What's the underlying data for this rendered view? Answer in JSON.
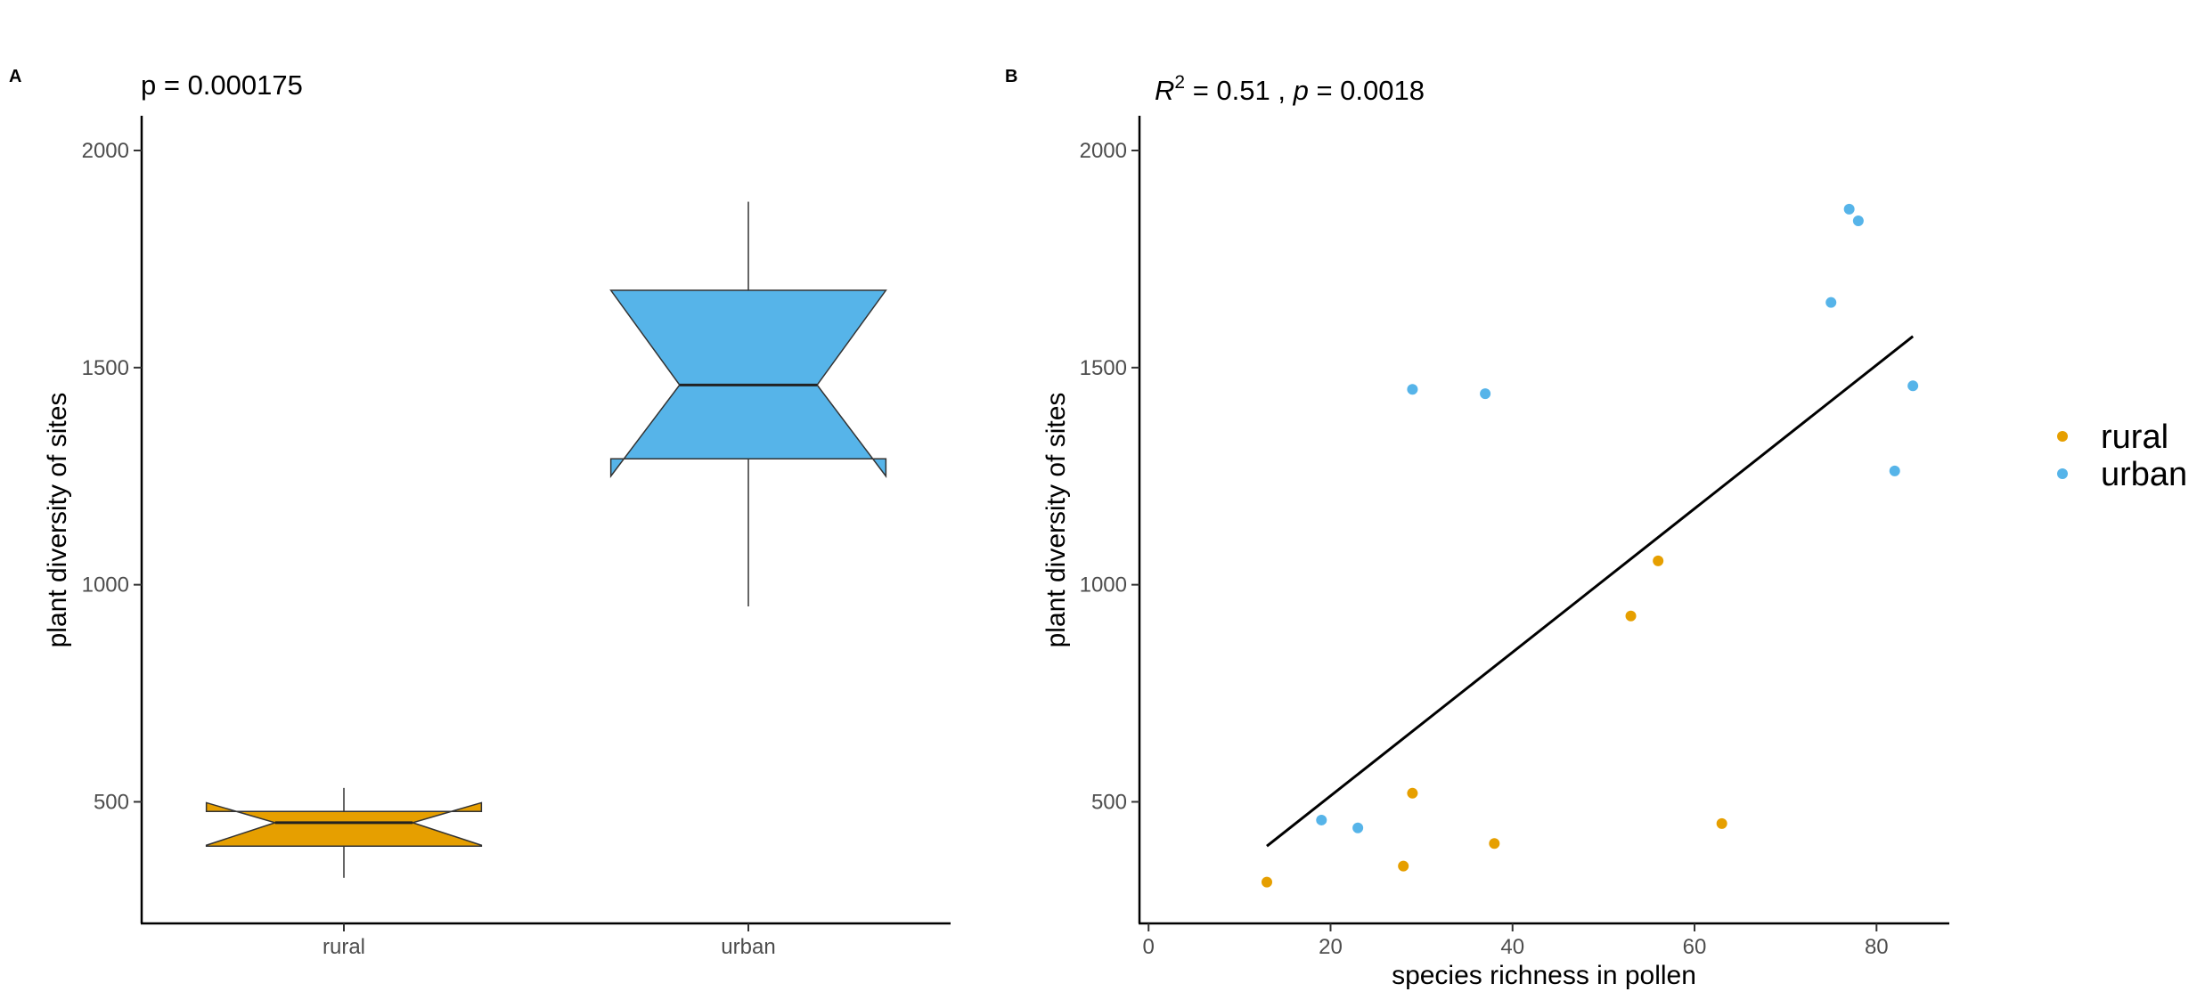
{
  "colors": {
    "rural": "#E69F00",
    "urban": "#56B4E9",
    "axis": "#000000",
    "tick_text": "#4d4d4d"
  },
  "panels": {
    "a": {
      "tag": "A",
      "subtitle": "p = 0.000175"
    },
    "b": {
      "tag": "B",
      "subtitle_r": "R",
      "subtitle_sup": "2",
      "subtitle_rest": " = 0.51 , ",
      "subtitle_p": "p",
      "subtitle_tail": " = 0.0018"
    }
  },
  "legend": {
    "items": [
      {
        "label": "rural",
        "color": "#E69F00"
      },
      {
        "label": "urban",
        "color": "#56B4E9"
      }
    ]
  },
  "chart_data": [
    {
      "type": "boxplot",
      "notched": true,
      "ylabel": "plant diversity of sites",
      "xlabel": "",
      "ylim": [
        220,
        2080
      ],
      "yticks": [
        500,
        1000,
        1500,
        2000
      ],
      "categories": [
        "rural",
        "urban"
      ],
      "boxes": [
        {
          "category": "rural",
          "color": "#E69F00",
          "whisker_low": 325,
          "q1": 398,
          "notch_low": 400,
          "median": 452,
          "notch_high": 498,
          "q3": 478,
          "whisker_high": 532
        },
        {
          "category": "urban",
          "color": "#56B4E9",
          "whisker_low": 950,
          "q1": 1290,
          "notch_low": 1250,
          "median": 1460,
          "notch_high": 1678,
          "q3": 1678,
          "whisker_high": 1882
        }
      ]
    },
    {
      "type": "scatter",
      "xlabel": "species richness in pollen",
      "ylabel": "plant diversity of sites",
      "xlim": [
        -1,
        88
      ],
      "ylim": [
        220,
        2080
      ],
      "xticks": [
        0,
        20,
        40,
        60,
        80
      ],
      "yticks": [
        500,
        1000,
        1500,
        2000
      ],
      "series": [
        {
          "name": "rural",
          "color": "#E69F00",
          "points": [
            [
              13,
              315
            ],
            [
              28,
              352
            ],
            [
              29,
              520
            ],
            [
              38,
              404
            ],
            [
              53,
              928
            ],
            [
              56,
              1055
            ],
            [
              63,
              450
            ]
          ]
        },
        {
          "name": "urban",
          "color": "#56B4E9",
          "points": [
            [
              19,
              458
            ],
            [
              23,
              440
            ],
            [
              29,
              1450
            ],
            [
              37,
              1440
            ],
            [
              75,
              1650
            ],
            [
              77,
              1865
            ],
            [
              78,
              1838
            ],
            [
              82,
              1262
            ],
            [
              84,
              1458
            ]
          ]
        }
      ],
      "trendline": {
        "x": [
          13,
          84
        ],
        "y": [
          398,
          1572
        ],
        "color": "#000000"
      }
    }
  ]
}
